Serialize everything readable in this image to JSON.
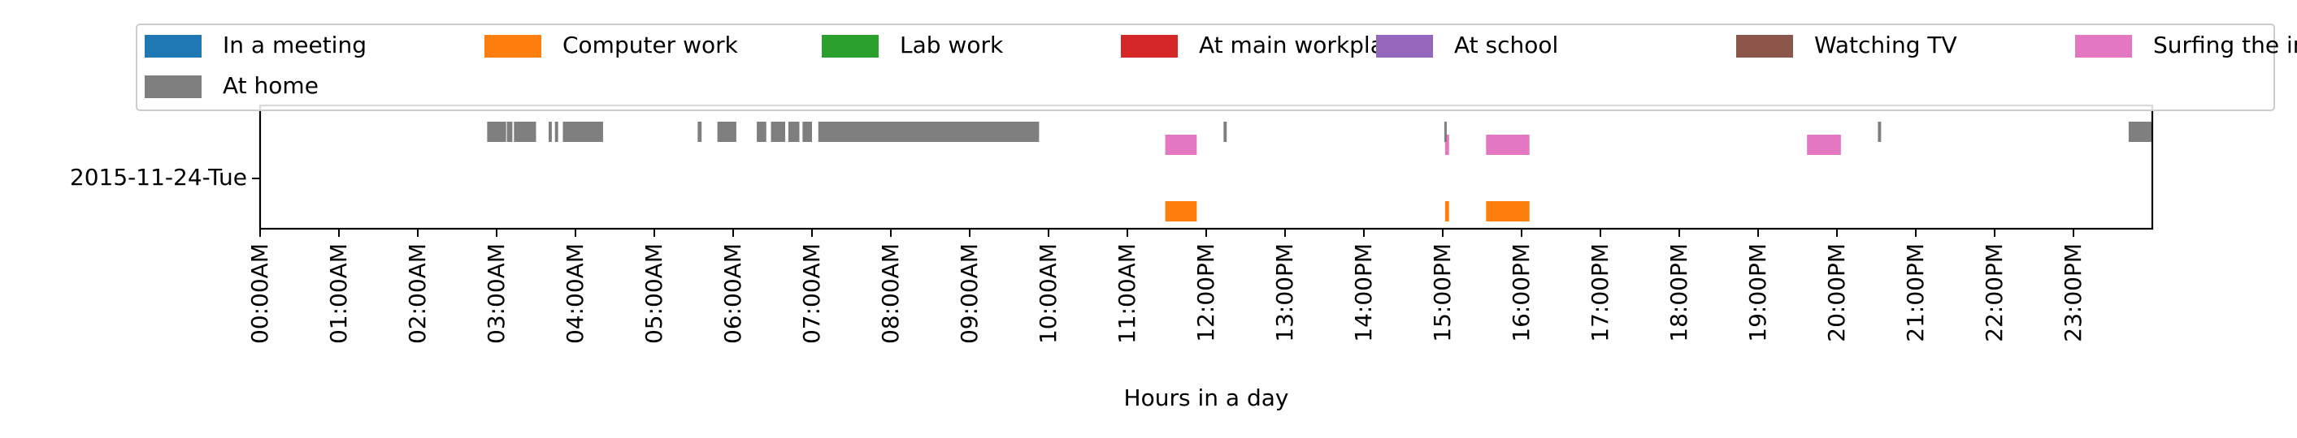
{
  "chart_data": {
    "type": "timeline",
    "xlabel": "Hours in a day",
    "xlim": [
      0,
      24
    ],
    "row_label": "2015-11-24-Tue",
    "legend_placement": "top",
    "x_ticks": [
      {
        "hour": 0,
        "label": "00:00AM"
      },
      {
        "hour": 1,
        "label": "01:00AM"
      },
      {
        "hour": 2,
        "label": "02:00AM"
      },
      {
        "hour": 3,
        "label": "03:00AM"
      },
      {
        "hour": 4,
        "label": "04:00AM"
      },
      {
        "hour": 5,
        "label": "05:00AM"
      },
      {
        "hour": 6,
        "label": "06:00AM"
      },
      {
        "hour": 7,
        "label": "07:00AM"
      },
      {
        "hour": 8,
        "label": "08:00AM"
      },
      {
        "hour": 9,
        "label": "09:00AM"
      },
      {
        "hour": 10,
        "label": "10:00AM"
      },
      {
        "hour": 11,
        "label": "11:00AM"
      },
      {
        "hour": 12,
        "label": "12:00PM"
      },
      {
        "hour": 13,
        "label": "13:00PM"
      },
      {
        "hour": 14,
        "label": "14:00PM"
      },
      {
        "hour": 15,
        "label": "15:00PM"
      },
      {
        "hour": 16,
        "label": "16:00PM"
      },
      {
        "hour": 17,
        "label": "17:00PM"
      },
      {
        "hour": 18,
        "label": "18:00PM"
      },
      {
        "hour": 19,
        "label": "19:00PM"
      },
      {
        "hour": 20,
        "label": "20:00PM"
      },
      {
        "hour": 21,
        "label": "21:00PM"
      },
      {
        "hour": 22,
        "label": "22:00PM"
      },
      {
        "hour": 23,
        "label": "23:00PM"
      }
    ],
    "series": [
      {
        "name": "In a meeting",
        "color": "#1f77b4",
        "intervals": []
      },
      {
        "name": "Computer work",
        "color": "#ff7f0e",
        "intervals": [
          [
            11.48,
            11.88
          ],
          [
            15.03,
            15.08
          ],
          [
            15.55,
            16.1
          ]
        ]
      },
      {
        "name": "Lab work",
        "color": "#2ca02c",
        "intervals": []
      },
      {
        "name": "At main workplace",
        "color": "#d62728",
        "intervals": []
      },
      {
        "name": "At school",
        "color": "#9467bd",
        "intervals": []
      },
      {
        "name": "Watching TV",
        "color": "#8c564b",
        "intervals": []
      },
      {
        "name": "Surfing the internet",
        "color": "#e377c2",
        "intervals": [
          [
            11.48,
            11.88
          ],
          [
            15.03,
            15.08
          ],
          [
            15.55,
            16.1
          ],
          [
            19.62,
            20.05
          ]
        ]
      },
      {
        "name": "At home",
        "color": "#7f7f7f",
        "intervals": [
          [
            2.88,
            3.12
          ],
          [
            3.13,
            3.2
          ],
          [
            3.22,
            3.5
          ],
          [
            3.66,
            3.7
          ],
          [
            3.74,
            3.78
          ],
          [
            3.84,
            4.35
          ],
          [
            5.55,
            5.6
          ],
          [
            5.8,
            6.04
          ],
          [
            6.3,
            6.42
          ],
          [
            6.48,
            6.66
          ],
          [
            6.7,
            6.84
          ],
          [
            6.88,
            7.0
          ],
          [
            7.08,
            9.88
          ],
          [
            12.22,
            12.26
          ],
          [
            15.02,
            15.05
          ],
          [
            20.52,
            20.56
          ],
          [
            23.7,
            24.0
          ]
        ]
      }
    ]
  }
}
